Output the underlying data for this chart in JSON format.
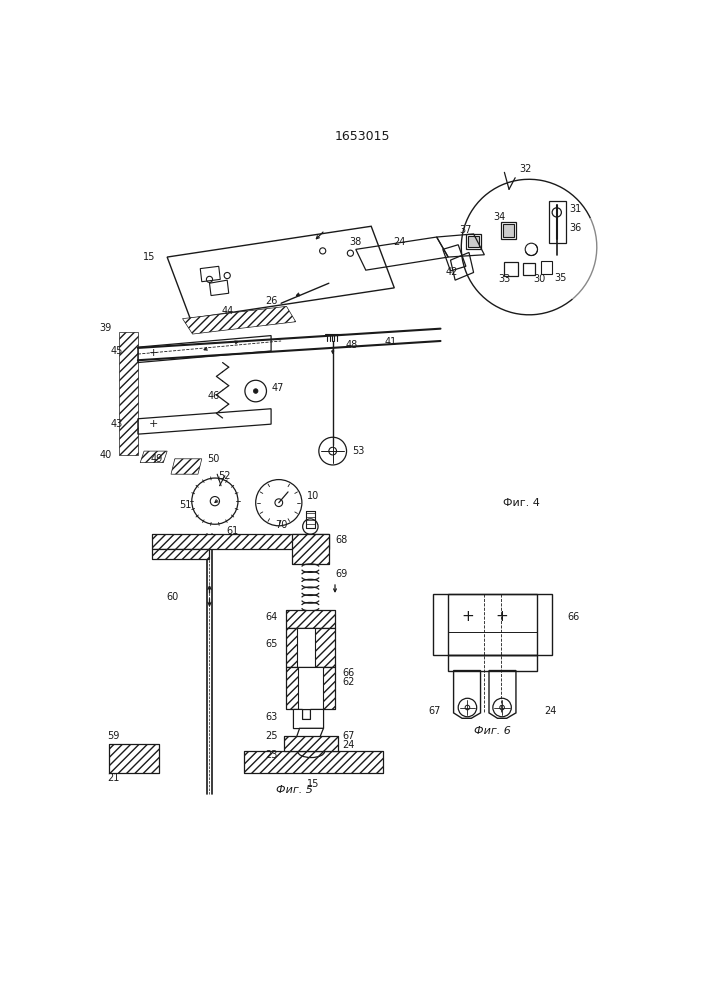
{
  "title": "1653015",
  "fig4_label": "Фиг. 4",
  "fig5_label": "Фиг. 5",
  "fig6_label": "Фиг. 6",
  "background": "#ffffff",
  "lc": "#1a1a1a",
  "fig_width": 7.07,
  "fig_height": 10.0
}
